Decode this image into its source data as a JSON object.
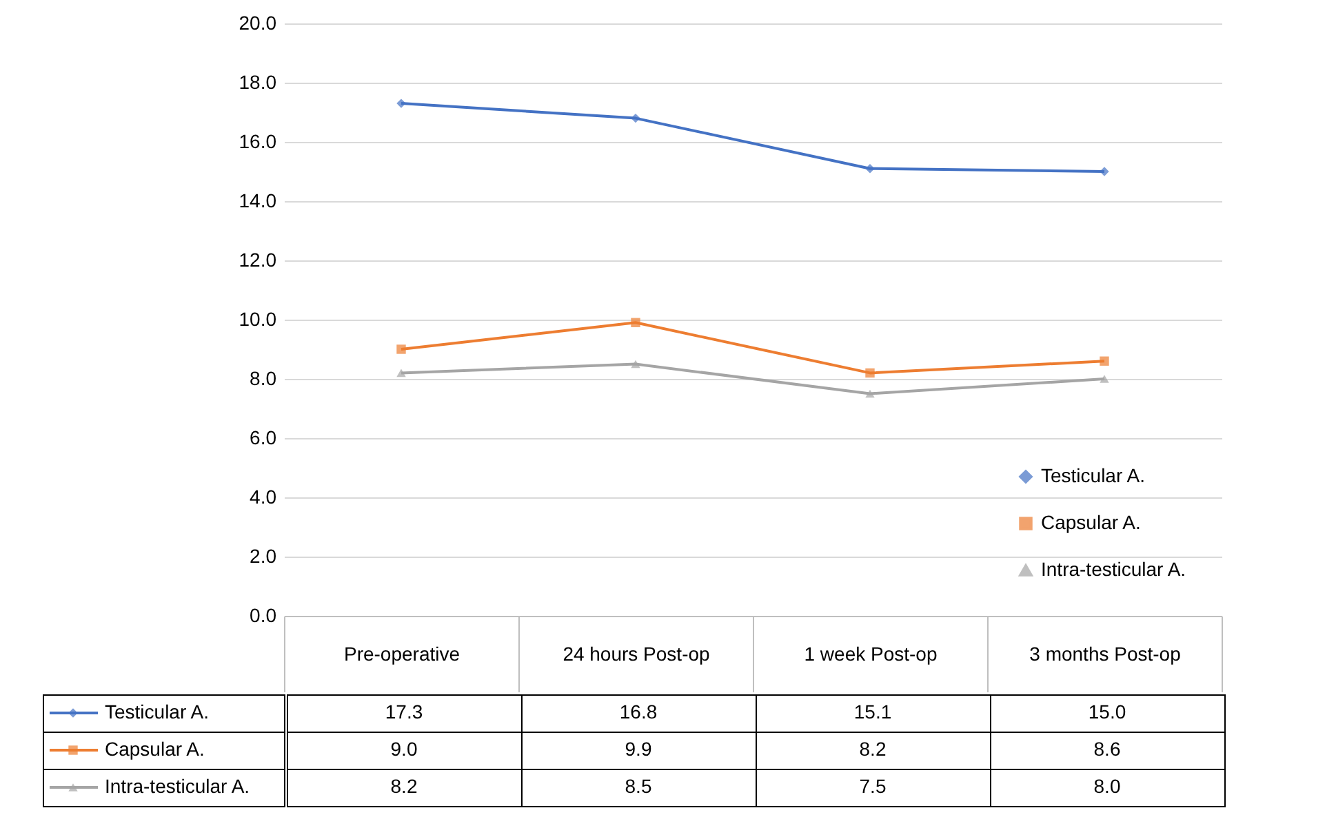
{
  "chart_data": {
    "type": "line",
    "categories": [
      "Pre-operative",
      "24 hours Post-op",
      "1 week Post-op",
      "3 months Post-op"
    ],
    "series": [
      {
        "name": "Testicular A.",
        "color": "#4472c4",
        "marker": "diamond",
        "values": [
          17.3,
          16.8,
          15.1,
          15.0
        ],
        "value_labels": [
          "17.3",
          "16.8",
          "15.1",
          "15.0"
        ]
      },
      {
        "name": "Capsular A.",
        "color": "#ed7d31",
        "marker": "square",
        "values": [
          9.0,
          9.9,
          8.2,
          8.6
        ],
        "value_labels": [
          "9.0",
          "9.9",
          "8.2",
          "8.6"
        ]
      },
      {
        "name": "Intra-testicular A.",
        "color": "#a5a5a5",
        "marker": "triangle",
        "values": [
          8.2,
          8.5,
          7.5,
          8.0
        ],
        "value_labels": [
          "8.2",
          "8.5",
          "7.5",
          "8.0"
        ]
      }
    ],
    "ylim": [
      0,
      20
    ],
    "yticks": [
      {
        "value": 0,
        "label": "0.0"
      },
      {
        "value": 2,
        "label": "2.0"
      },
      {
        "value": 4,
        "label": "4.0"
      },
      {
        "value": 6,
        "label": "6.0"
      },
      {
        "value": 8,
        "label": "8.0"
      },
      {
        "value": 10,
        "label": "10.0"
      },
      {
        "value": 12,
        "label": "12.0"
      },
      {
        "value": 14,
        "label": "14.0"
      },
      {
        "value": 16,
        "label": "16.0"
      },
      {
        "value": 18,
        "label": "18.0"
      },
      {
        "value": 20,
        "label": "20.0"
      }
    ],
    "grid": "y",
    "legend": "bottom right",
    "line_style": "solid"
  }
}
